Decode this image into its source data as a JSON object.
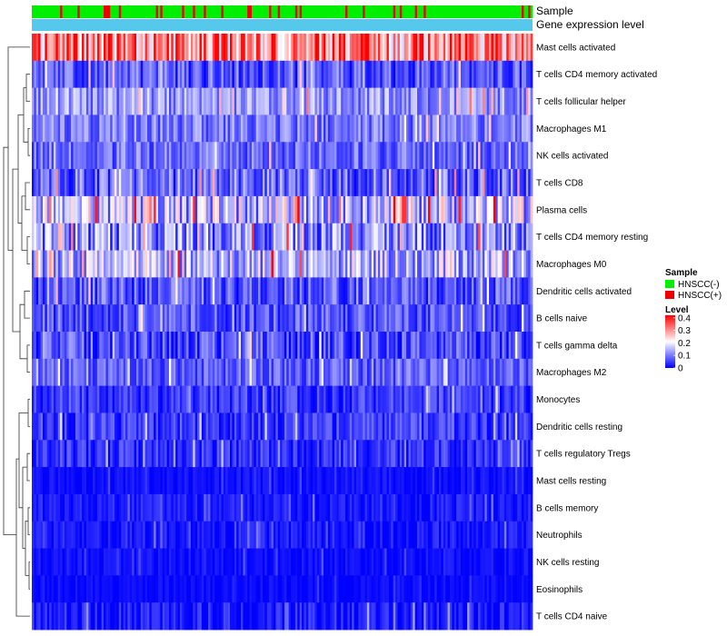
{
  "chart_data": {
    "type": "heatmap",
    "annotation_tracks": [
      "Sample",
      "Gene expression level"
    ],
    "rows": [
      {
        "label": "Mast cells activated",
        "base": 0.27,
        "spread": 0.13
      },
      {
        "label": "T cells CD4 memory activated",
        "base": 0.05,
        "spread": 0.07
      },
      {
        "label": "T cells follicular helper",
        "base": 0.1,
        "spread": 0.07
      },
      {
        "label": "Macrophages M1",
        "base": 0.08,
        "spread": 0.06
      },
      {
        "label": "NK cells activated",
        "base": 0.07,
        "spread": 0.06
      },
      {
        "label": "T cells CD8",
        "base": 0.06,
        "spread": 0.08
      },
      {
        "label": "Plasma cells",
        "base": 0.12,
        "spread": 0.12
      },
      {
        "label": "T cells CD4 memory resting",
        "base": 0.08,
        "spread": 0.1
      },
      {
        "label": "Macrophages M0",
        "base": 0.12,
        "spread": 0.1
      },
      {
        "label": "Dendritic cells activated",
        "base": 0.05,
        "spread": 0.07
      },
      {
        "label": "B cells naive",
        "base": 0.05,
        "spread": 0.06
      },
      {
        "label": "T cells gamma delta",
        "base": 0.04,
        "spread": 0.07
      },
      {
        "label": "Macrophages M2",
        "base": 0.06,
        "spread": 0.05
      },
      {
        "label": "Monocytes",
        "base": 0.03,
        "spread": 0.05
      },
      {
        "label": "Dendritic cells resting",
        "base": 0.03,
        "spread": 0.05
      },
      {
        "label": "T cells regulatory  Tregs",
        "base": 0.02,
        "spread": 0.05
      },
      {
        "label": "Mast cells resting",
        "base": 0.005,
        "spread": 0.02
      },
      {
        "label": "B cells memory",
        "base": 0.01,
        "spread": 0.03
      },
      {
        "label": "Neutrophils",
        "base": 0.01,
        "spread": 0.03
      },
      {
        "label": "NK cells resting",
        "base": 0.005,
        "spread": 0.02
      },
      {
        "label": "Eosinophils",
        "base": 0.003,
        "spread": 0.015
      },
      {
        "label": "T cells CD4 naive",
        "base": 0.01,
        "spread": 0.04
      }
    ],
    "n_columns": 230,
    "sample_legend": {
      "title": "Sample",
      "entries": [
        {
          "label": "HNSCC(-)",
          "color": "#00ee00"
        },
        {
          "label": "HNSCC(+)",
          "color": "#ee0000"
        }
      ]
    },
    "level_legend": {
      "title": "Level",
      "ticks": [
        "0.4",
        "0.3",
        "0.2",
        "0.1",
        "0"
      ],
      "tick_values": [
        0.4,
        0.3,
        0.2,
        0.1,
        0
      ],
      "range": [
        0,
        0.42
      ]
    },
    "colors": {
      "low": "#0000ff",
      "mid": "#ffffff",
      "high": "#ff0000",
      "expression_track": "#55c8ec"
    }
  }
}
